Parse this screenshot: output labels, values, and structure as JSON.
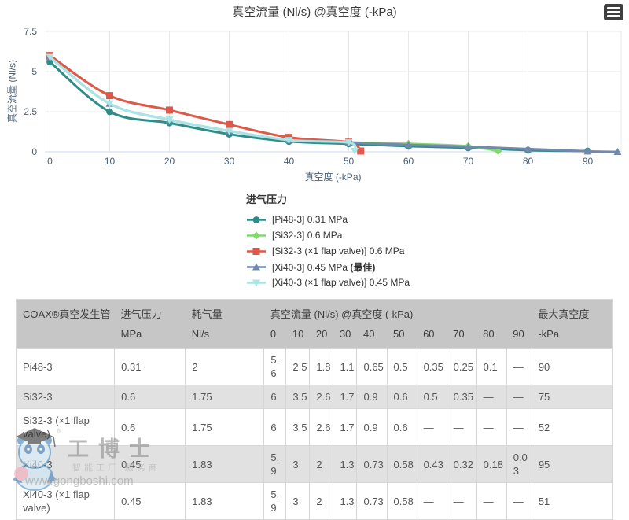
{
  "chart": {
    "title": "真空流量 (Nl/s) @真空度 (-kPa)",
    "menu_icon": "hamburger-menu-icon"
  },
  "chart_data": {
    "type": "line",
    "title": "真空流量 (Nl/s) @真空度 (-kPa)",
    "xlabel": "真空度 (-kPa)",
    "ylabel": "真空流量 (Nl/s)",
    "xlim": [
      0,
      96
    ],
    "ylim": [
      0,
      7.5
    ],
    "xticks": [
      0,
      10,
      20,
      30,
      40,
      50,
      60,
      70,
      80,
      90
    ],
    "yticks": [
      0,
      2.5,
      5,
      7.5
    ],
    "grid": true,
    "legend_title": "进气压力",
    "legend_position": "bottom-left",
    "axis_text_color": "#4c6072",
    "grid_color": "#e8e8e8",
    "axis_line_color": "#ccd6eb",
    "series": [
      {
        "name": "[Pi48-3] 0.31 MPa",
        "color": "#2f8c88",
        "marker": "circle",
        "points": [
          [
            0,
            5.6
          ],
          [
            10,
            2.5
          ],
          [
            20,
            1.8
          ],
          [
            30,
            1.1
          ],
          [
            40,
            0.65
          ],
          [
            50,
            0.5
          ],
          [
            60,
            0.35
          ],
          [
            70,
            0.25
          ],
          [
            80,
            0.1
          ],
          [
            90,
            0.05
          ]
        ]
      },
      {
        "name": "[Si32-3] 0.6 MPa",
        "color": "#82d96e",
        "marker": "diamond",
        "points": [
          [
            0,
            6
          ],
          [
            10,
            3.5
          ],
          [
            20,
            2.6
          ],
          [
            30,
            1.7
          ],
          [
            40,
            0.9
          ],
          [
            50,
            0.6
          ],
          [
            60,
            0.5
          ],
          [
            70,
            0.35
          ],
          [
            75,
            0.05
          ]
        ]
      },
      {
        "name": "[Si32-3 (×1 flap valve)] 0.6 MPa",
        "color": "#e2574c",
        "marker": "square",
        "points": [
          [
            0,
            6
          ],
          [
            10,
            3.5
          ],
          [
            20,
            2.6
          ],
          [
            30,
            1.7
          ],
          [
            40,
            0.9
          ],
          [
            50,
            0.6
          ],
          [
            52,
            0.05
          ]
        ]
      },
      {
        "name": "[Xi40-3] 0.45 MPa ",
        "name_bold": "(最佳)",
        "color": "#7289ad",
        "marker": "triangle",
        "points": [
          [
            0,
            5.9
          ],
          [
            10,
            3
          ],
          [
            20,
            2
          ],
          [
            30,
            1.3
          ],
          [
            40,
            0.73
          ],
          [
            50,
            0.58
          ],
          [
            60,
            0.43
          ],
          [
            70,
            0.32
          ],
          [
            80,
            0.18
          ],
          [
            90,
            0.03
          ],
          [
            95,
            0
          ]
        ]
      },
      {
        "name": "[Xi40-3 (×1 flap valve)] 0.45 MPa",
        "color": "#a9e5e4",
        "marker": "triangle-down",
        "points": [
          [
            0,
            5.9
          ],
          [
            10,
            3
          ],
          [
            20,
            2
          ],
          [
            30,
            1.3
          ],
          [
            40,
            0.73
          ],
          [
            50,
            0.58
          ],
          [
            51,
            0.05
          ]
        ]
      }
    ]
  },
  "table": {
    "col_headers": {
      "name": "COAX®真空发生管",
      "pressure": "进气压力",
      "consumption": "耗气量",
      "flow": "真空流量 (Nl/s) @真空度 (-kPa)",
      "max_vacuum": "最大真空度"
    },
    "units": {
      "pressure": "MPa",
      "consumption": "Nl/s",
      "max_vacuum": "-kPa"
    },
    "vacuum_levels": [
      "0",
      "10",
      "20",
      "30",
      "40",
      "50",
      "60",
      "70",
      "80",
      "90"
    ],
    "rows": [
      {
        "name": "Pi48-3",
        "pressure": "0.31",
        "consumption": "2",
        "flows": [
          "5.6",
          "2.5",
          "1.8",
          "1.1",
          "0.65",
          "0.5",
          "0.35",
          "0.25",
          "0.1",
          "—"
        ],
        "max_vacuum": "90"
      },
      {
        "name": "Si32-3",
        "pressure": "0.6",
        "consumption": "1.75",
        "flows": [
          "6",
          "3.5",
          "2.6",
          "1.7",
          "0.9",
          "0.6",
          "0.5",
          "0.35",
          "—",
          "—"
        ],
        "max_vacuum": "75"
      },
      {
        "name": "Si32-3 (×1 flap valve)",
        "pressure": "0.6",
        "consumption": "1.75",
        "flows": [
          "6",
          "3.5",
          "2.6",
          "1.7",
          "0.9",
          "0.6",
          "—",
          "—",
          "—",
          "—"
        ],
        "max_vacuum": "52"
      },
      {
        "name": "Xi40-3",
        "pressure": "0.45",
        "consumption": "1.83",
        "flows": [
          "5.9",
          "3",
          "2",
          "1.3",
          "0.73",
          "0.58",
          "0.43",
          "0.32",
          "0.18",
          "0.03"
        ],
        "max_vacuum": "95"
      },
      {
        "name": "Xi40-3 (×1 flap valve)",
        "pressure": "0.45",
        "consumption": "1.83",
        "flows": [
          "5.9",
          "3",
          "2",
          "1.3",
          "0.73",
          "0.58",
          "—",
          "—",
          "—",
          "—"
        ],
        "max_vacuum": "51"
      }
    ]
  },
  "watermark": {
    "brand": "工博士",
    "tagline": "智能工厂 服务商",
    "url": "www.gongboshi.com"
  }
}
